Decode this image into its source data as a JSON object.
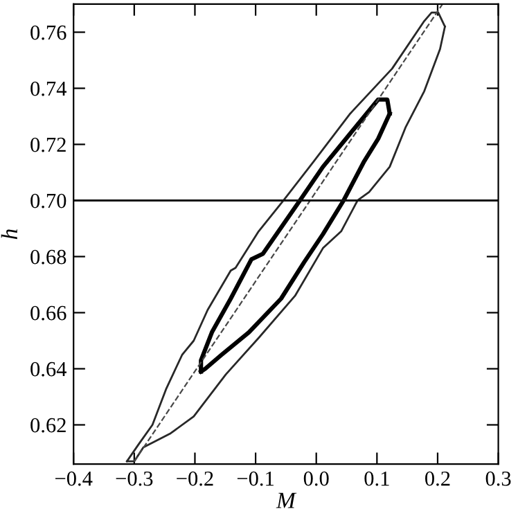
{
  "chart_data": {
    "type": "line",
    "xlabel": "M",
    "ylabel": "h",
    "xlim": [
      -0.4,
      0.3
    ],
    "ylim": [
      0.606,
      0.77
    ],
    "xticks": [
      {
        "value": -0.4,
        "label": "−0.4"
      },
      {
        "value": -0.3,
        "label": "−0.3"
      },
      {
        "value": -0.2,
        "label": "−0.2"
      },
      {
        "value": -0.1,
        "label": "−0.1"
      },
      {
        "value": 0,
        "label": "0.0"
      },
      {
        "value": 0.1,
        "label": "0.1"
      },
      {
        "value": 0.2,
        "label": "0.2"
      },
      {
        "value": 0.3,
        "label": "0.3"
      }
    ],
    "yticks": [
      0.62,
      0.64,
      0.66,
      0.68,
      {
        "value": 0.7,
        "label": "0.70"
      },
      0.72,
      0.74,
      0.76
    ],
    "grid": false,
    "legend": false,
    "marker": "none",
    "ref_lines": [
      {
        "axis": "y",
        "value": 0.7,
        "color": "#101010",
        "line_style": "solid"
      }
    ],
    "series": [
      {
        "color": "#282828",
        "line_style": "solid",
        "x": [
          -0.312,
          -0.293,
          -0.27,
          -0.247,
          -0.221,
          -0.202,
          -0.179,
          -0.141,
          -0.133,
          -0.095,
          -0.054,
          -0.004,
          0.056,
          0.125,
          0.178,
          0.19,
          0.201,
          0.212
        ],
        "values": [
          0.607,
          0.613,
          0.62,
          0.633,
          0.645,
          0.65,
          0.661,
          0.675,
          0.676,
          0.689,
          0.7,
          0.714,
          0.731,
          0.747,
          0.764,
          0.767,
          0.767,
          0.762
        ]
      },
      {
        "color": "#282828",
        "line_style": "solid",
        "x": [
          -0.312,
          -0.3,
          -0.285,
          -0.24,
          -0.202,
          -0.149,
          -0.095,
          -0.035,
          0.011,
          0.041,
          0.068,
          0.087,
          0.121,
          0.147,
          0.178,
          0.204,
          0.212
        ],
        "values": [
          0.607,
          0.607,
          0.612,
          0.617,
          0.623,
          0.638,
          0.651,
          0.666,
          0.683,
          0.689,
          0.7,
          0.703,
          0.712,
          0.726,
          0.739,
          0.754,
          0.762
        ]
      },
      {
        "color": "#000000",
        "line_style": "solid",
        "x": [
          -0.19,
          -0.19,
          -0.172,
          -0.141,
          -0.107,
          -0.088,
          -0.027,
          0.011,
          0.064,
          0.102,
          0.117,
          0.121
        ],
        "values": [
          0.639,
          0.643,
          0.653,
          0.665,
          0.679,
          0.681,
          0.7,
          0.712,
          0.726,
          0.736,
          0.736,
          0.731
        ]
      },
      {
        "color": "#000000",
        "line_style": "solid",
        "x": [
          -0.19,
          -0.183,
          -0.156,
          -0.111,
          -0.058,
          -0.02,
          0.011,
          0.045,
          0.079,
          0.102,
          0.121
        ],
        "values": [
          0.639,
          0.64,
          0.645,
          0.653,
          0.665,
          0.678,
          0.688,
          0.7,
          0.714,
          0.722,
          0.731
        ]
      },
      {
        "color": "#484848",
        "line_style": "dashed",
        "x": [
          -0.3,
          0.208
        ],
        "values": [
          0.607,
          0.77
        ]
      }
    ]
  }
}
